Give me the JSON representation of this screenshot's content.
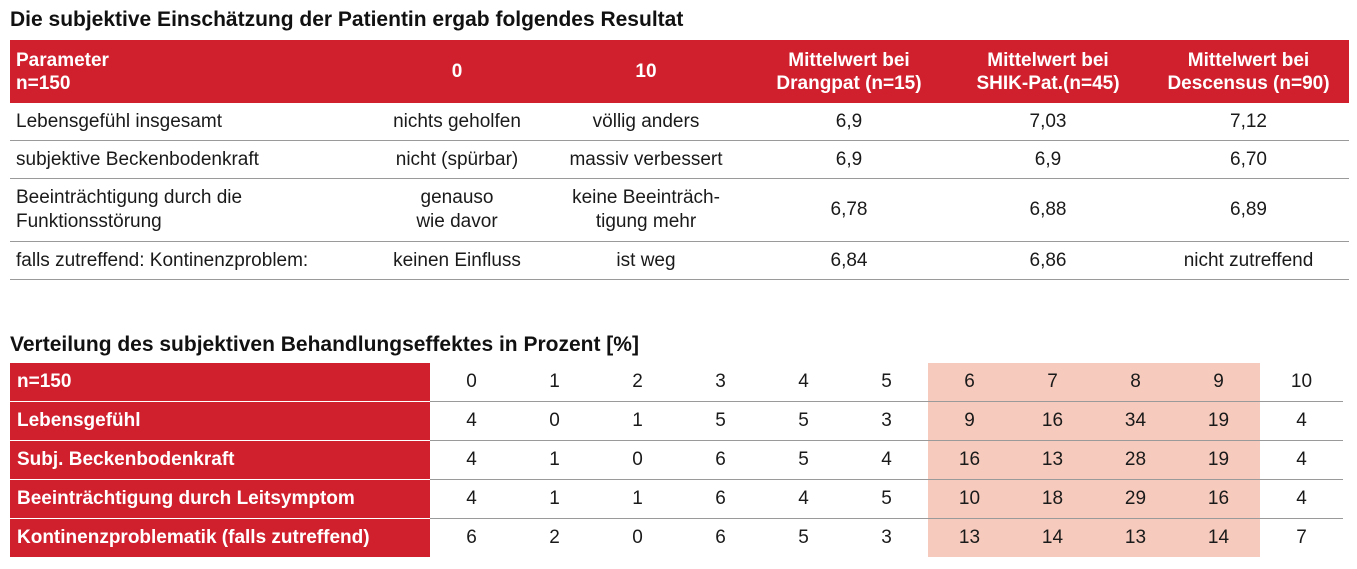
{
  "table1": {
    "title": "Die subjektive Einschätzung der Patientin ergab folgendes Resultat",
    "headers": [
      [
        "Parameter",
        "n=150"
      ],
      [
        "0"
      ],
      [
        "10"
      ],
      [
        "Mittelwert bei",
        "Drangpat (n=15)"
      ],
      [
        "Mittelwert bei",
        "SHIK-Pat.(n=45)"
      ],
      [
        "Mittelwert bei",
        "Descensus (n=90)"
      ]
    ],
    "rows": [
      {
        "parameter": [
          "Lebensgefühl insgesamt"
        ],
        "zero": [
          "nichts geholfen"
        ],
        "ten": [
          "völlig anders"
        ],
        "drang": "6,9",
        "shik": "7,03",
        "desc": "7,12"
      },
      {
        "parameter": [
          "subjektive Beckenbodenkraft"
        ],
        "zero": [
          "nicht (spürbar)"
        ],
        "ten": [
          "massiv verbessert"
        ],
        "drang": "6,9",
        "shik": "6,9",
        "desc": "6,70"
      },
      {
        "parameter": [
          "Beeinträchtigung durch die",
          "Funktionsstörung"
        ],
        "zero": [
          "genauso",
          "wie davor"
        ],
        "ten": [
          "keine Beeinträch-",
          "tigung mehr"
        ],
        "drang": "6,78",
        "shik": "6,88",
        "desc": "6,89"
      },
      {
        "parameter": [
          "falls zutreffend: Kontinenzproblem:"
        ],
        "zero": [
          "keinen Einfluss"
        ],
        "ten": [
          "ist weg"
        ],
        "drang": "6,84",
        "shik": "6,86",
        "desc": "nicht zutreffend"
      }
    ]
  },
  "table2": {
    "title": "Verteilung des subjektiven Behandlungseffektes in Prozent [%]",
    "header_label": "n=150",
    "scale": [
      "0",
      "1",
      "2",
      "3",
      "4",
      "5",
      "6",
      "7",
      "8",
      "9",
      "10"
    ],
    "highlight_color": "#f6cbbd",
    "highlight_columns": [
      "6",
      "7",
      "8",
      "9"
    ],
    "rows": [
      {
        "label": "Lebensgefühl",
        "values": [
          "4",
          "0",
          "1",
          "5",
          "5",
          "3",
          "9",
          "16",
          "34",
          "19",
          "4"
        ]
      },
      {
        "label": "Subj. Beckenbodenkraft",
        "values": [
          "4",
          "1",
          "0",
          "6",
          "5",
          "4",
          "16",
          "13",
          "28",
          "19",
          "4"
        ]
      },
      {
        "label": "Beeinträchtigung durch Leitsymptom",
        "values": [
          "4",
          "1",
          "1",
          "6",
          "4",
          "5",
          "10",
          "18",
          "29",
          "16",
          "4"
        ]
      },
      {
        "label": "Kontinenzproblematik (falls zutreffend)",
        "values": [
          "6",
          "2",
          "0",
          "6",
          "5",
          "3",
          "13",
          "14",
          "13",
          "14",
          "7"
        ]
      }
    ]
  },
  "colors": {
    "accent_red": "#d0202e",
    "highlight": "#f6cbbd",
    "rule": "#9a9a9a"
  }
}
